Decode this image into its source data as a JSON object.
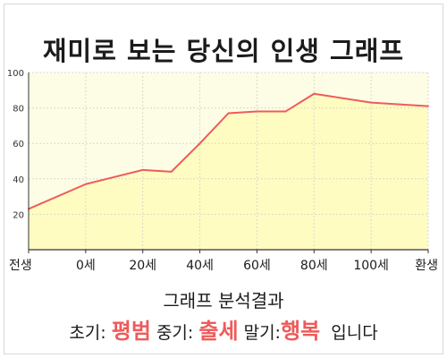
{
  "chart_data": {
    "type": "area",
    "title": "재미로 보는 당신의 인생 그래프",
    "x": [
      -20,
      0,
      20,
      30,
      40,
      50,
      60,
      70,
      80,
      100,
      120
    ],
    "y": [
      23,
      37,
      45,
      44,
      60,
      77,
      78,
      78,
      88,
      83,
      81
    ],
    "xticks": [
      "전생",
      "0세",
      "20세",
      "40세",
      "60세",
      "80세",
      "100세",
      "환생"
    ],
    "xtick_values": [
      -20,
      0,
      20,
      40,
      60,
      80,
      100,
      120
    ],
    "yticks": [
      20,
      40,
      60,
      80,
      100
    ],
    "xlim": [
      -20,
      120
    ],
    "ylim": [
      0,
      100
    ],
    "grid": true,
    "line_color": "#ee5c5c",
    "fill_color": "#fffcc2",
    "plot_background": "#fdfde6"
  },
  "summary": {
    "heading": "그래프 분석결과",
    "early_label": "초기:",
    "early_value": "평범",
    "middle_label": "중기:",
    "middle_value": "출세",
    "late_label": "말기:",
    "late_value": "행복",
    "ending": "입니다"
  }
}
